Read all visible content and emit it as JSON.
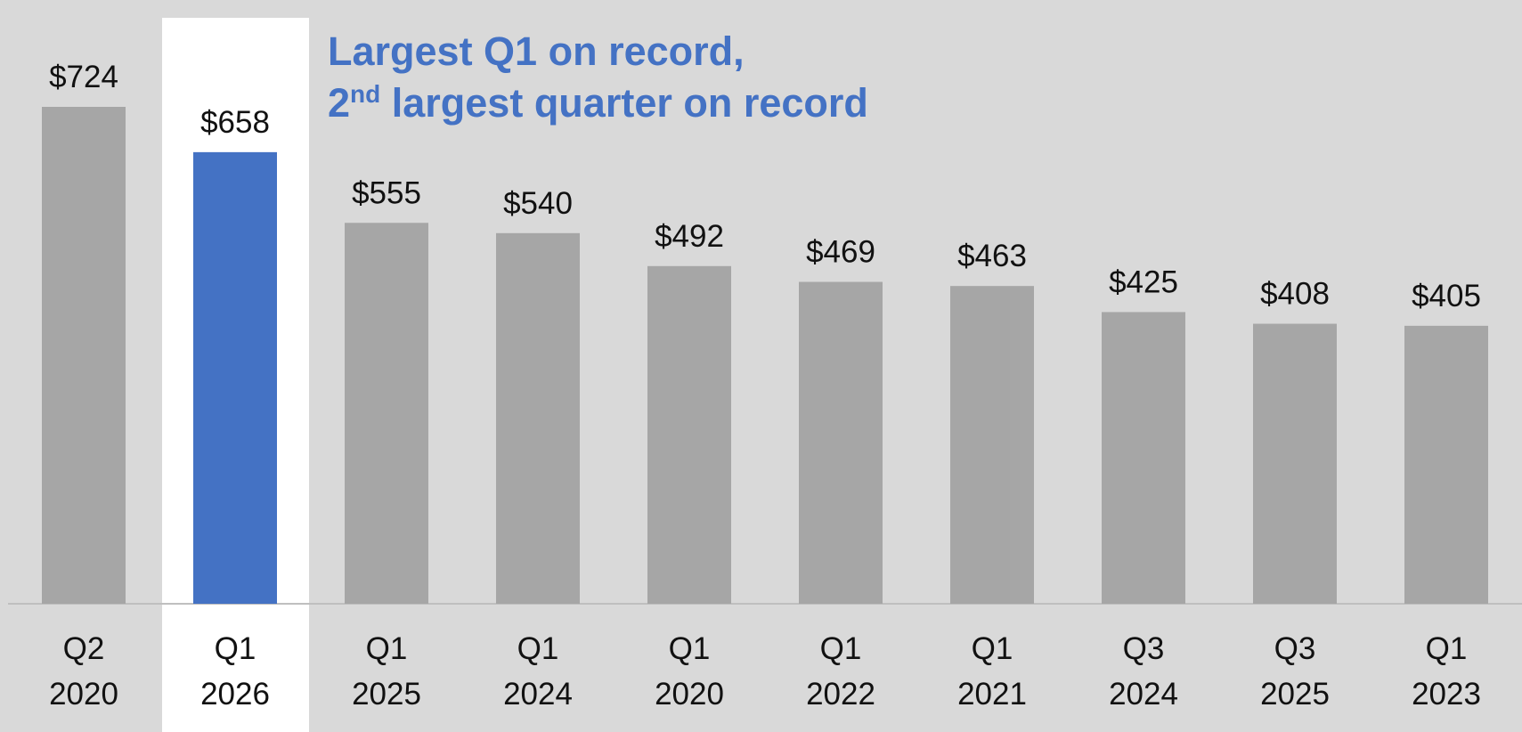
{
  "chart_data": {
    "type": "bar",
    "annotation": {
      "line1": "Largest Q1 on record,",
      "line2": [
        "2",
        "nd",
        " largest quarter on record"
      ]
    },
    "categories": [
      "Q2 2020",
      "Q1 2026",
      "Q1 2025",
      "Q1 2024",
      "Q1 2020",
      "Q1 2022",
      "Q1 2021",
      "Q3 2024",
      "Q3 2025",
      "Q1 2023"
    ],
    "values": [
      724,
      658,
      555,
      540,
      492,
      469,
      463,
      425,
      408,
      405
    ],
    "value_labels": [
      "$724",
      "$658",
      "$555",
      "$540",
      "$492",
      "$469",
      "$463",
      "$425",
      "$408",
      "$405"
    ],
    "color": "#a6a6a6",
    "highlight_index": 1,
    "highlight_color": "#4472c4"
  }
}
